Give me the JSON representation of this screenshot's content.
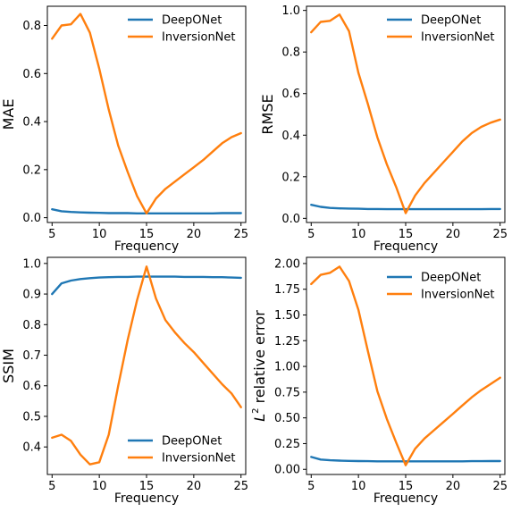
{
  "colors": {
    "deeponet": "#1f77b4",
    "inversionnet": "#ff7f0e"
  },
  "chart_data": [
    {
      "type": "line",
      "title": "",
      "xlabel": "Frequency",
      "ylabel": "MAE",
      "ylabel_sup": "",
      "xlim": [
        4.5,
        25.5
      ],
      "ylim": [
        -0.02,
        0.88
      ],
      "xticks": [
        5,
        10,
        15,
        20,
        25
      ],
      "xtick_labels": [
        "5",
        "10",
        "15",
        "20",
        "25"
      ],
      "yticks": [
        0.0,
        0.2,
        0.4,
        0.6,
        0.8
      ],
      "ytick_labels": [
        "0.0",
        "0.2",
        "0.4",
        "0.6",
        "0.8"
      ],
      "legend": "top-right",
      "grid": false,
      "x": [
        5,
        6,
        7,
        8,
        9,
        10,
        11,
        12,
        13,
        14,
        15,
        16,
        17,
        18,
        19,
        20,
        21,
        22,
        23,
        24,
        25
      ],
      "series": [
        {
          "name": "DeepONet",
          "color": "#1f77b4",
          "values": [
            0.035,
            0.027,
            0.024,
            0.022,
            0.021,
            0.02,
            0.019,
            0.019,
            0.019,
            0.018,
            0.018,
            0.018,
            0.018,
            0.018,
            0.018,
            0.018,
            0.018,
            0.018,
            0.019,
            0.019,
            0.019
          ]
        },
        {
          "name": "InversionNet",
          "color": "#ff7f0e",
          "values": [
            0.745,
            0.8,
            0.805,
            0.848,
            0.77,
            0.62,
            0.45,
            0.3,
            0.19,
            0.09,
            0.018,
            0.08,
            0.12,
            0.15,
            0.18,
            0.21,
            0.24,
            0.275,
            0.31,
            0.335,
            0.352
          ]
        }
      ]
    },
    {
      "type": "line",
      "title": "",
      "xlabel": "Frequency",
      "ylabel": "RMSE",
      "ylabel_sup": "",
      "xlim": [
        4.5,
        25.5
      ],
      "ylim": [
        -0.02,
        1.02
      ],
      "xticks": [
        5,
        10,
        15,
        20,
        25
      ],
      "xtick_labels": [
        "5",
        "10",
        "15",
        "20",
        "25"
      ],
      "yticks": [
        0.0,
        0.2,
        0.4,
        0.6,
        0.8,
        1.0
      ],
      "ytick_labels": [
        "0.0",
        "0.2",
        "0.4",
        "0.6",
        "0.8",
        "1.0"
      ],
      "legend": "top-right",
      "grid": false,
      "x": [
        5,
        6,
        7,
        8,
        9,
        10,
        11,
        12,
        13,
        14,
        15,
        16,
        17,
        18,
        19,
        20,
        21,
        22,
        23,
        24,
        25
      ],
      "series": [
        {
          "name": "DeepONet",
          "color": "#1f77b4",
          "values": [
            0.065,
            0.055,
            0.05,
            0.048,
            0.047,
            0.046,
            0.045,
            0.045,
            0.044,
            0.044,
            0.044,
            0.044,
            0.044,
            0.044,
            0.044,
            0.044,
            0.044,
            0.044,
            0.044,
            0.045,
            0.045
          ]
        },
        {
          "name": "InversionNet",
          "color": "#ff7f0e",
          "values": [
            0.895,
            0.945,
            0.95,
            0.98,
            0.9,
            0.7,
            0.55,
            0.39,
            0.26,
            0.15,
            0.025,
            0.11,
            0.17,
            0.22,
            0.27,
            0.32,
            0.37,
            0.41,
            0.44,
            0.46,
            0.475
          ]
        }
      ]
    },
    {
      "type": "line",
      "title": "",
      "xlabel": "Frequency",
      "ylabel": "SSIM",
      "ylabel_sup": "",
      "xlim": [
        4.5,
        25.5
      ],
      "ylim": [
        0.31,
        1.02
      ],
      "xticks": [
        5,
        10,
        15,
        20,
        25
      ],
      "xtick_labels": [
        "5",
        "10",
        "15",
        "20",
        "25"
      ],
      "yticks": [
        0.4,
        0.5,
        0.6,
        0.7,
        0.8,
        0.9,
        1.0
      ],
      "ytick_labels": [
        "0.4",
        "0.5",
        "0.6",
        "0.7",
        "0.8",
        "0.9",
        "1.0"
      ],
      "legend": "bottom-right",
      "grid": false,
      "x": [
        5,
        6,
        7,
        8,
        9,
        10,
        11,
        12,
        13,
        14,
        15,
        16,
        17,
        18,
        19,
        20,
        21,
        22,
        23,
        24,
        25
      ],
      "series": [
        {
          "name": "DeepONet",
          "color": "#1f77b4",
          "values": [
            0.9,
            0.935,
            0.944,
            0.949,
            0.952,
            0.954,
            0.955,
            0.956,
            0.956,
            0.957,
            0.957,
            0.957,
            0.957,
            0.957,
            0.956,
            0.956,
            0.956,
            0.955,
            0.955,
            0.954,
            0.953
          ]
        },
        {
          "name": "InversionNet",
          "color": "#ff7f0e",
          "values": [
            0.43,
            0.44,
            0.42,
            0.375,
            0.343,
            0.35,
            0.44,
            0.6,
            0.75,
            0.88,
            0.99,
            0.885,
            0.815,
            0.775,
            0.74,
            0.71,
            0.675,
            0.64,
            0.605,
            0.575,
            0.53
          ]
        }
      ]
    },
    {
      "type": "line",
      "title": "",
      "xlabel": "Frequency",
      "ylabel": " relative error",
      "ylabel_sup": "L",
      "ylabel_sup_exp": "2",
      "xlim": [
        4.5,
        25.5
      ],
      "ylim": [
        -0.05,
        2.06
      ],
      "xticks": [
        5,
        10,
        15,
        20,
        25
      ],
      "xtick_labels": [
        "5",
        "10",
        "15",
        "20",
        "25"
      ],
      "yticks": [
        0.0,
        0.25,
        0.5,
        0.75,
        1.0,
        1.25,
        1.5,
        1.75,
        2.0
      ],
      "ytick_labels": [
        "0.00",
        "0.25",
        "0.50",
        "0.75",
        "1.00",
        "1.25",
        "1.50",
        "1.75",
        "2.00"
      ],
      "legend": "top-right",
      "grid": false,
      "x": [
        5,
        6,
        7,
        8,
        9,
        10,
        11,
        12,
        13,
        14,
        15,
        16,
        17,
        18,
        19,
        20,
        21,
        22,
        23,
        24,
        25
      ],
      "series": [
        {
          "name": "DeepONet",
          "color": "#1f77b4",
          "values": [
            0.12,
            0.095,
            0.088,
            0.085,
            0.082,
            0.08,
            0.079,
            0.078,
            0.078,
            0.078,
            0.078,
            0.078,
            0.078,
            0.078,
            0.078,
            0.078,
            0.078,
            0.079,
            0.079,
            0.08,
            0.08
          ]
        },
        {
          "name": "InversionNet",
          "color": "#ff7f0e",
          "values": [
            1.8,
            1.89,
            1.91,
            1.97,
            1.83,
            1.55,
            1.15,
            0.76,
            0.49,
            0.26,
            0.04,
            0.2,
            0.3,
            0.38,
            0.46,
            0.54,
            0.62,
            0.7,
            0.77,
            0.83,
            0.89
          ]
        }
      ]
    }
  ]
}
